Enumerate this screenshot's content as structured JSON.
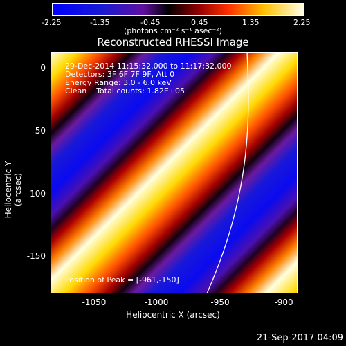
{
  "colorbar": {
    "ticks": [
      "-2.25",
      "-1.35",
      "-0.45",
      "0.45",
      "1.35",
      "2.25"
    ],
    "unit": "(photons cm⁻² s⁻¹ asec⁻²)"
  },
  "title": "Reconstructed RHESSI Image",
  "info": {
    "line1": "29-Dec-2014 11:15:32.000 to 11:17:32.000",
    "line2": "Detectors: 3F 6F 7F 9F, Att 0",
    "line3": "Energy Range: 3.0 - 6.0 keV",
    "line4": "Clean    Total counts: 1.82E+05",
    "peak": "Position of Peak = [-961,-150]"
  },
  "axes": {
    "xlabel": "Heliocentric X (arcsec)",
    "ylabel": "Heliocentric Y (arcsec)",
    "xticks": [
      "-1050",
      "-1000",
      "-950",
      "-900"
    ],
    "yticks": [
      "0",
      "-50",
      "-100",
      "-150"
    ]
  },
  "footer": {
    "date": "21-Sep-2017 04:09"
  }
}
